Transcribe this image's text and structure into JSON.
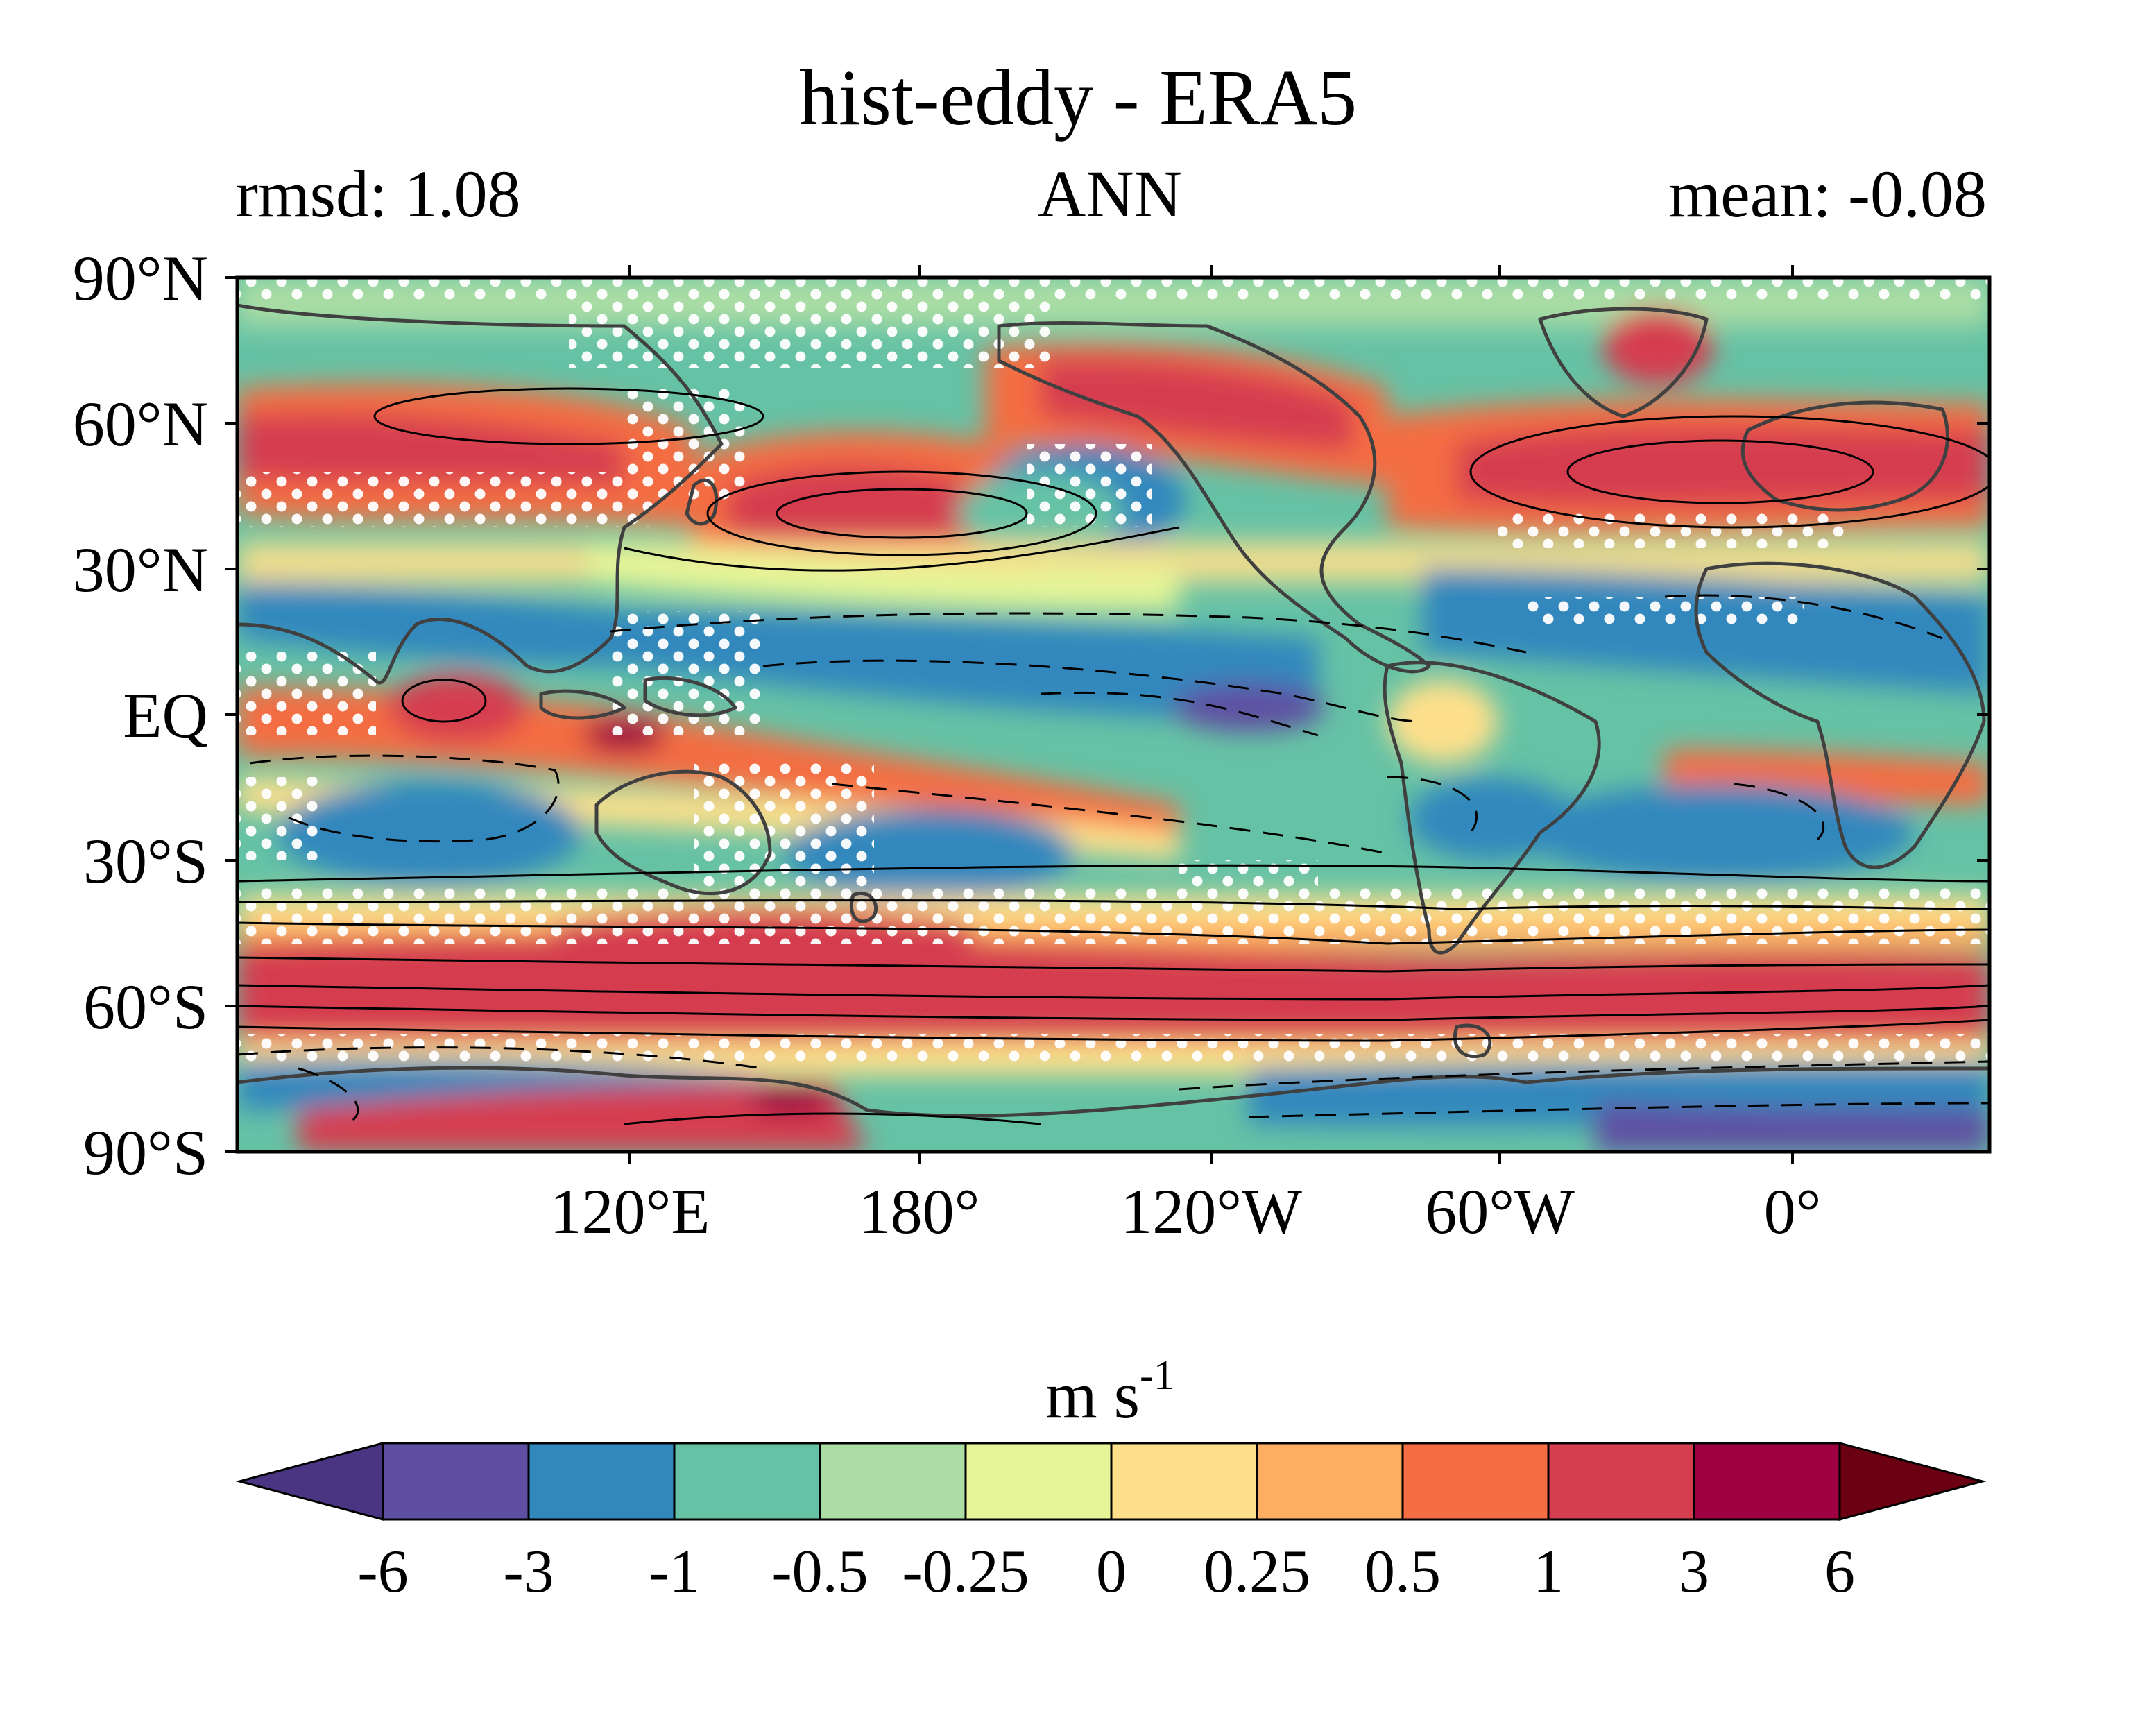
{
  "title": "hist-eddy - ERA5",
  "subtitle_left": "rmsd: 1.08",
  "subtitle_center": "ANN",
  "subtitle_right": "mean: -0.08",
  "map": {
    "lat_labels": [
      "90°N",
      "60°N",
      "30°N",
      "EQ",
      "30°S",
      "60°S",
      "90°S"
    ],
    "lon_labels": [
      "120°E",
      "180°",
      "120°W",
      "60°W",
      "0°"
    ],
    "content": "filled contour difference map of zonal wind with black solid/dashed climatology contours, coastlines and white stippling"
  },
  "colorbar": {
    "unit": "m s",
    "unit_sup": "-1",
    "tick_labels": [
      "-6",
      "-3",
      "-1",
      "-0.5",
      "-0.25",
      "0",
      "0.25",
      "0.5",
      "1",
      "3",
      "6"
    ],
    "colors": [
      "#5e4fa2",
      "#3288bd",
      "#66c2a5",
      "#abdda4",
      "#e6f598",
      "#fee08b",
      "#fdae61",
      "#f46d43",
      "#d53e4f",
      "#9e0142"
    ],
    "under_color": "#4a3582",
    "over_color": "#6a0012"
  },
  "chart_data": {
    "type": "heatmap",
    "title": "hist-eddy - ERA5",
    "ylabel": "",
    "xlabel": "",
    "y_ticks": [
      "90°N",
      "60°N",
      "30°N",
      "EQ",
      "30°S",
      "60°S",
      "90°S"
    ],
    "x_ticks": [
      "120°E",
      "180°",
      "120°W",
      "60°W",
      "0°"
    ],
    "levels": [
      -6,
      -3,
      -1,
      -0.5,
      -0.25,
      0,
      0.25,
      0.5,
      1,
      3,
      6
    ],
    "colorbar_label": "m s-1",
    "stats": {
      "rmsd": 1.08,
      "mean": -0.08,
      "season": "ANN"
    }
  }
}
